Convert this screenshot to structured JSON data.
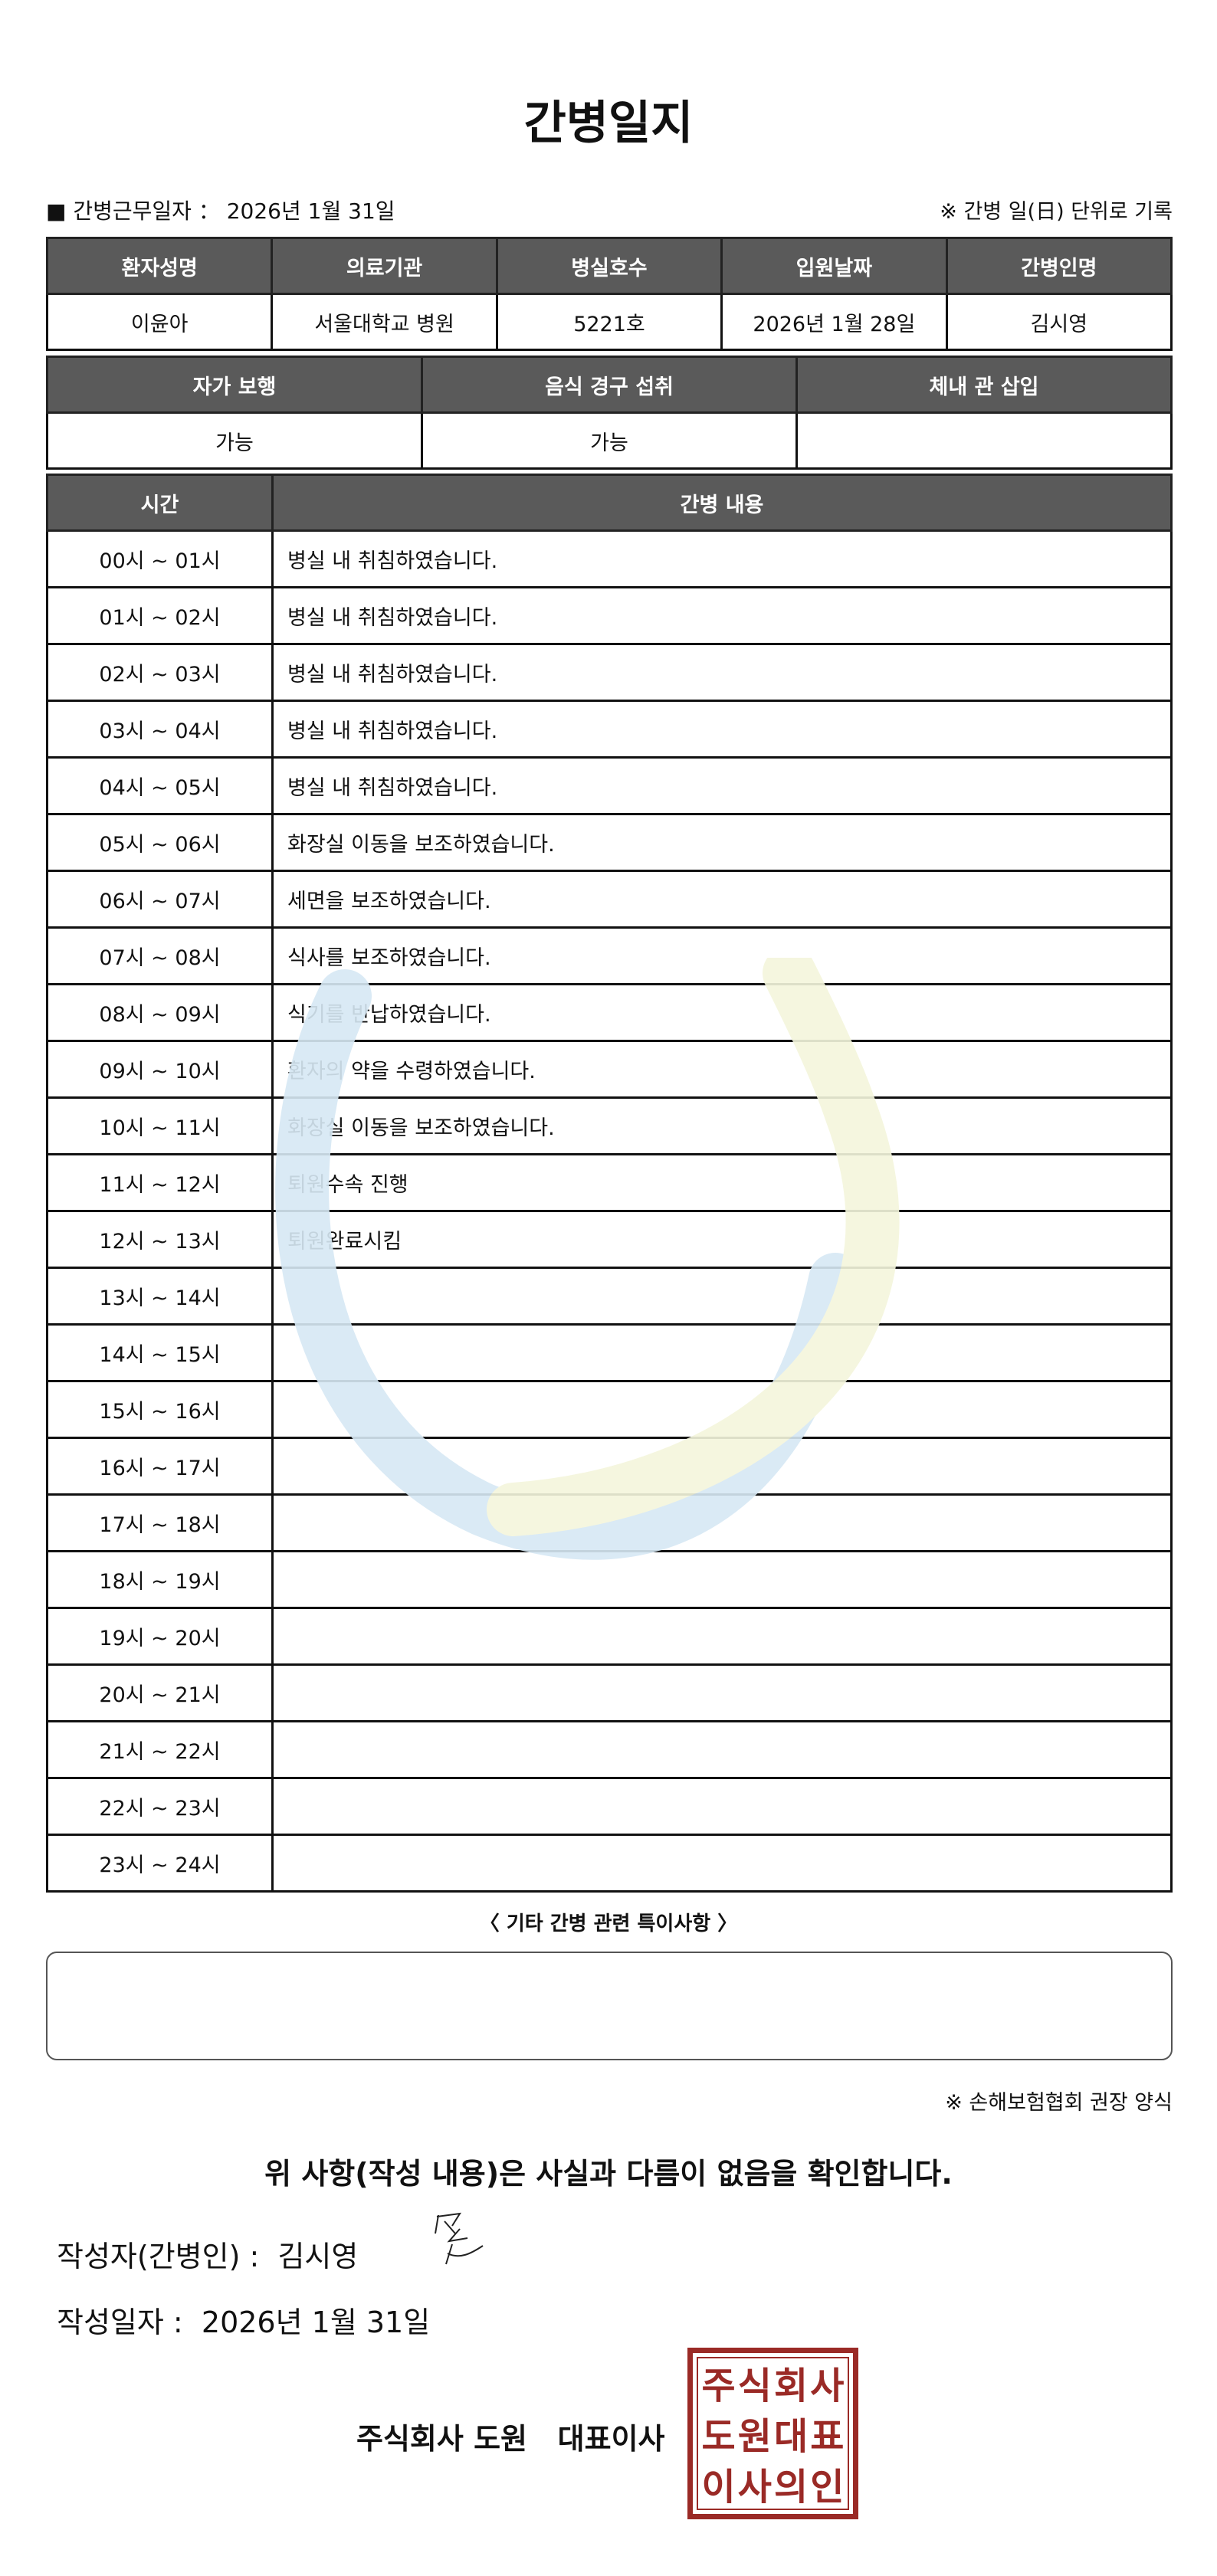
{
  "title": "간병일지",
  "info": {
    "work_date_label": "■ 간병근무일자 ：",
    "work_date": "2026년 1월 31일",
    "unit_note": "※ 간병 일(日) 단위로 기록"
  },
  "patient": {
    "headers": [
      "환자성명",
      "의료기관",
      "병실호수",
      "입원날짜",
      "간병인명"
    ],
    "values": [
      "이윤아",
      "서울대학교 병원",
      "5221호",
      "2026년 1월 28일",
      "김시영"
    ]
  },
  "status": {
    "headers": [
      "자가 보행",
      "음식 경구 섭취",
      "체내 관 삽입"
    ],
    "values": [
      "가능",
      "가능",
      ""
    ]
  },
  "log": {
    "headers": [
      "시간",
      "간병 내용"
    ],
    "rows": [
      {
        "time": "00시 ~ 01시",
        "content": "병실 내 취침하였습니다."
      },
      {
        "time": "01시 ~ 02시",
        "content": "병실 내 취침하였습니다."
      },
      {
        "time": "02시 ~ 03시",
        "content": "병실 내 취침하였습니다."
      },
      {
        "time": "03시 ~ 04시",
        "content": "병실 내 취침하였습니다."
      },
      {
        "time": "04시 ~ 05시",
        "content": "병실 내 취침하였습니다."
      },
      {
        "time": "05시 ~ 06시",
        "content": "화장실 이동을 보조하였습니다."
      },
      {
        "time": "06시 ~ 07시",
        "content": "세면을 보조하였습니다."
      },
      {
        "time": "07시 ~ 08시",
        "content": "식사를 보조하였습니다."
      },
      {
        "time": "08시 ~ 09시",
        "content": "식기를 반납하였습니다."
      },
      {
        "time": "09시 ~ 10시",
        "content": "환자의 약을 수령하였습니다."
      },
      {
        "time": "10시 ~ 11시",
        "content": "화장실 이동을 보조하였습니다."
      },
      {
        "time": "11시 ~ 12시",
        "content": "퇴원수속 진행"
      },
      {
        "time": "12시 ~ 13시",
        "content": "퇴원완료시킴"
      },
      {
        "time": "13시 ~ 14시",
        "content": ""
      },
      {
        "time": "14시 ~ 15시",
        "content": ""
      },
      {
        "time": "15시 ~ 16시",
        "content": ""
      },
      {
        "time": "16시 ~ 17시",
        "content": ""
      },
      {
        "time": "17시 ~ 18시",
        "content": ""
      },
      {
        "time": "18시 ~ 19시",
        "content": ""
      },
      {
        "time": "19시 ~ 20시",
        "content": ""
      },
      {
        "time": "20시 ~ 21시",
        "content": ""
      },
      {
        "time": "21시 ~ 22시",
        "content": ""
      },
      {
        "time": "22시 ~ 23시",
        "content": ""
      },
      {
        "time": "23시 ~ 24시",
        "content": ""
      }
    ]
  },
  "notes": {
    "title": "〈 기타 간병 관련 특이사항 〉",
    "value": ""
  },
  "source_note": "※ 손해보험협회 권장 양식",
  "confirmation": "위 사항(작성 내용)은 사실과 다름이 없음을 확인합니다.",
  "writer": {
    "label": "작성자(간병인) :",
    "name": "김시영"
  },
  "written_date": {
    "label": "작성일자 :",
    "value": "2026년 1월 31일"
  },
  "company": "주식회사 도원   대표이사",
  "stamp": {
    "text": "주식회사도원대표이사의인",
    "color": "#9a2a26"
  },
  "colors": {
    "header_bg": "#5a5a5a",
    "watermark_blue": "#d7e8f4",
    "watermark_yellow": "#f4f6dc"
  }
}
